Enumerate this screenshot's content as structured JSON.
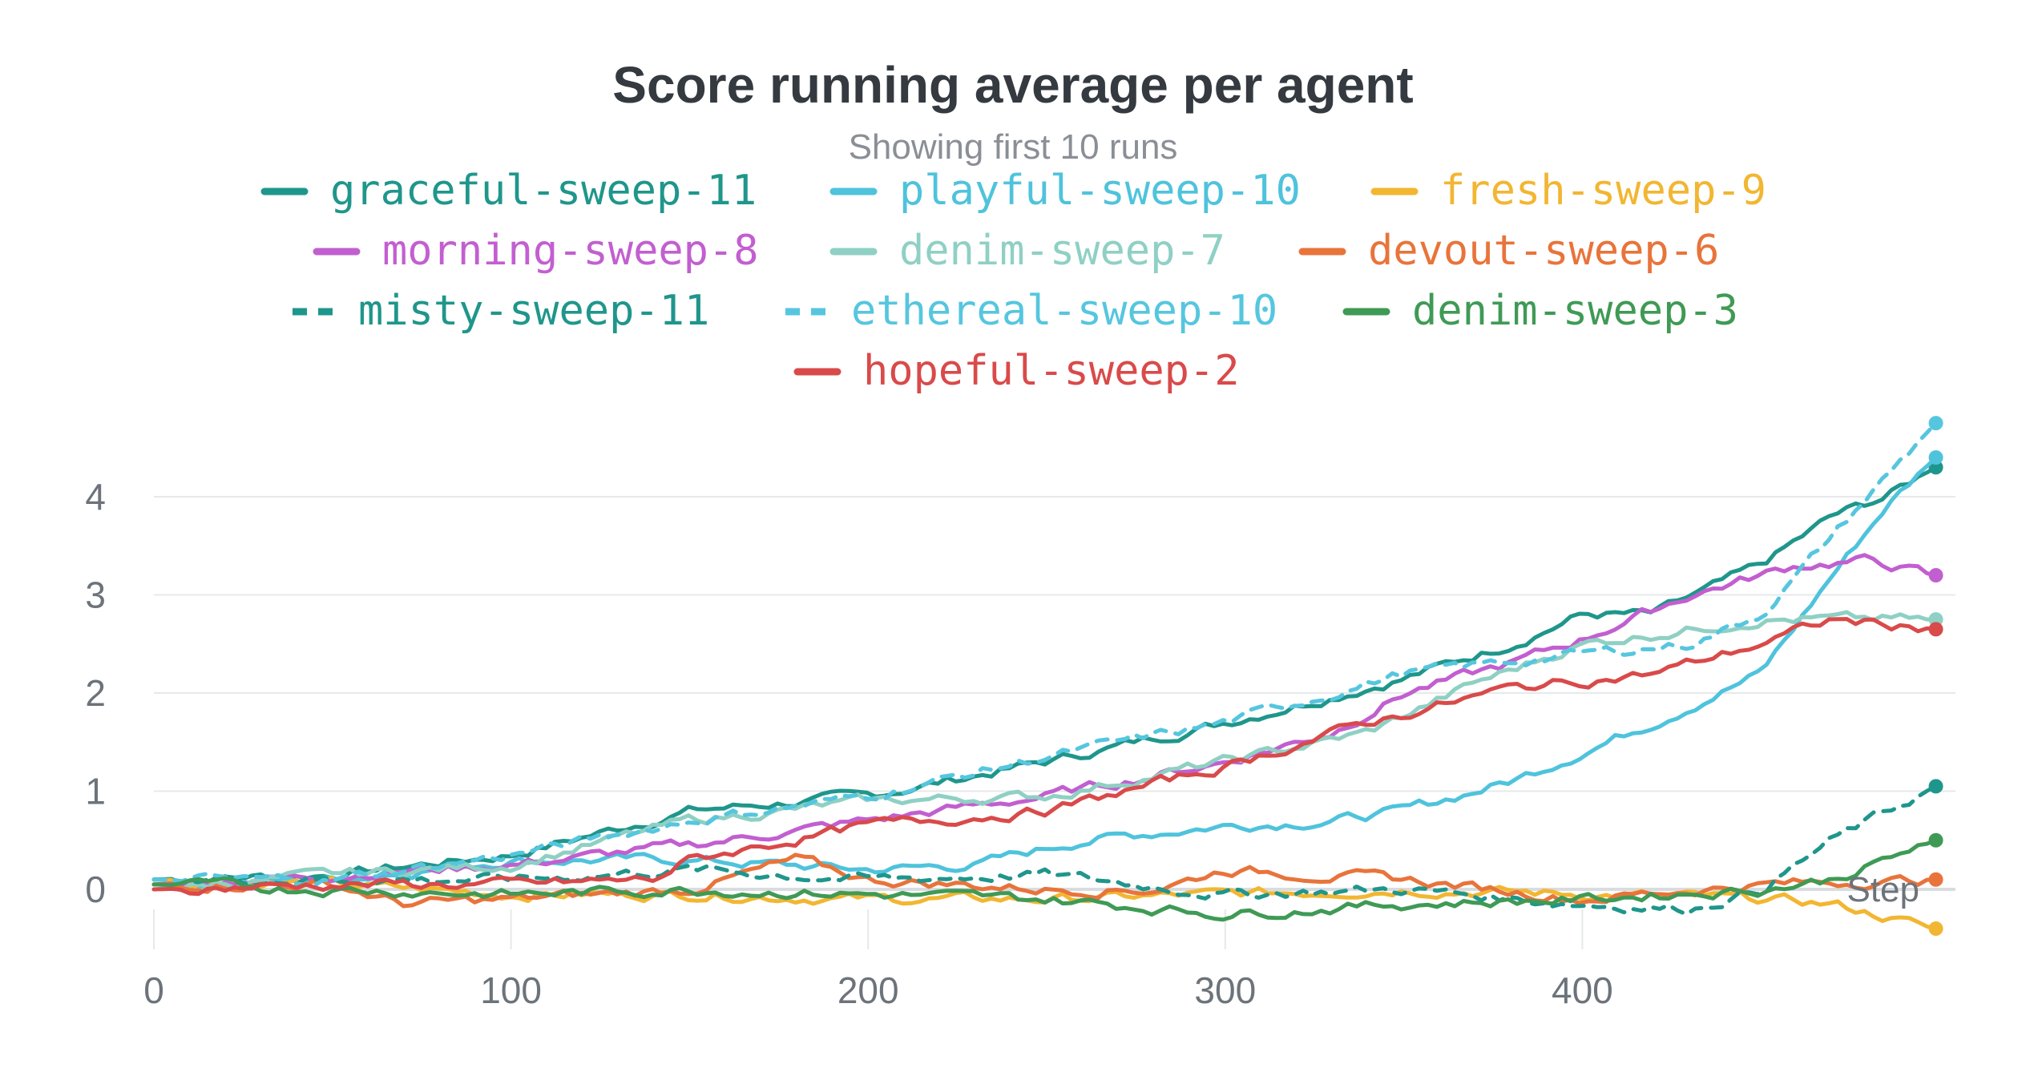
{
  "chart_data": {
    "type": "line",
    "title": "Score running average per agent",
    "subtitle": "Showing first 10 runs",
    "xlabel": "Step",
    "ylabel": "",
    "xlim": [
      0,
      500
    ],
    "ylim": [
      -0.5,
      4.6
    ],
    "x_ticks": [
      0,
      100,
      200,
      300,
      400
    ],
    "y_ticks": [
      0,
      1,
      2,
      3,
      4
    ],
    "grid": true,
    "legend_position": "top",
    "series": [
      {
        "name": "graceful-sweep-11",
        "color": "#1f968b",
        "dash": false,
        "points": [
          [
            0,
            0.1
          ],
          [
            50,
            0.15
          ],
          [
            100,
            0.35
          ],
          [
            150,
            0.8
          ],
          [
            200,
            0.95
          ],
          [
            250,
            1.3
          ],
          [
            300,
            1.7
          ],
          [
            350,
            2.15
          ],
          [
            380,
            2.5
          ],
          [
            400,
            2.8
          ],
          [
            420,
            2.8
          ],
          [
            450,
            3.3
          ],
          [
            470,
            3.8
          ],
          [
            485,
            4.0
          ],
          [
            499,
            4.3
          ]
        ]
      },
      {
        "name": "playful-sweep-10",
        "color": "#4fc3dc",
        "dash": false,
        "points": [
          [
            0,
            0.05
          ],
          [
            50,
            0.1
          ],
          [
            100,
            0.3
          ],
          [
            150,
            0.3
          ],
          [
            200,
            0.2
          ],
          [
            230,
            0.25
          ],
          [
            260,
            0.5
          ],
          [
            300,
            0.65
          ],
          [
            330,
            0.7
          ],
          [
            350,
            0.8
          ],
          [
            380,
            1.1
          ],
          [
            400,
            1.4
          ],
          [
            420,
            1.7
          ],
          [
            450,
            2.2
          ],
          [
            470,
            3.2
          ],
          [
            485,
            3.9
          ],
          [
            499,
            4.4
          ]
        ]
      },
      {
        "name": "fresh-sweep-9",
        "color": "#f2b632",
        "dash": false,
        "points": [
          [
            0,
            0.1
          ],
          [
            50,
            0.05
          ],
          [
            100,
            -0.05
          ],
          [
            150,
            -0.05
          ],
          [
            200,
            -0.1
          ],
          [
            250,
            -0.1
          ],
          [
            300,
            -0.05
          ],
          [
            350,
            0
          ],
          [
            400,
            -0.05
          ],
          [
            450,
            -0.1
          ],
          [
            470,
            -0.15
          ],
          [
            499,
            -0.4
          ]
        ]
      },
      {
        "name": "morning-sweep-8",
        "color": "#c25fd0",
        "dash": false,
        "points": [
          [
            0,
            0.05
          ],
          [
            50,
            0.15
          ],
          [
            100,
            0.25
          ],
          [
            150,
            0.45
          ],
          [
            200,
            0.7
          ],
          [
            250,
            0.95
          ],
          [
            300,
            1.3
          ],
          [
            330,
            1.6
          ],
          [
            350,
            2.0
          ],
          [
            380,
            2.3
          ],
          [
            400,
            2.55
          ],
          [
            430,
            3.0
          ],
          [
            460,
            3.3
          ],
          [
            480,
            3.35
          ],
          [
            499,
            3.2
          ]
        ]
      },
      {
        "name": "denim-sweep-7",
        "color": "#8fd0c4",
        "dash": false,
        "points": [
          [
            0,
            0
          ],
          [
            50,
            0.15
          ],
          [
            100,
            0.25
          ],
          [
            150,
            0.7
          ],
          [
            200,
            0.9
          ],
          [
            250,
            0.95
          ],
          [
            300,
            1.3
          ],
          [
            340,
            1.6
          ],
          [
            370,
            2.1
          ],
          [
            400,
            2.5
          ],
          [
            420,
            2.6
          ],
          [
            450,
            2.75
          ],
          [
            470,
            2.75
          ],
          [
            499,
            2.75
          ]
        ]
      },
      {
        "name": "devout-sweep-6",
        "color": "#e8743b",
        "dash": false,
        "points": [
          [
            0,
            0.05
          ],
          [
            50,
            0.05
          ],
          [
            70,
            -0.15
          ],
          [
            100,
            -0.1
          ],
          [
            150,
            0
          ],
          [
            180,
            0.3
          ],
          [
            200,
            0.1
          ],
          [
            250,
            0
          ],
          [
            280,
            0
          ],
          [
            300,
            0.2
          ],
          [
            350,
            0.1
          ],
          [
            400,
            -0.1
          ],
          [
            450,
            0.05
          ],
          [
            499,
            0.1
          ]
        ]
      },
      {
        "name": "misty-sweep-11",
        "color": "#1f968b",
        "dash": true,
        "points": [
          [
            0,
            0.1
          ],
          [
            50,
            0.1
          ],
          [
            100,
            0.1
          ],
          [
            150,
            0.2
          ],
          [
            200,
            0.1
          ],
          [
            250,
            0.15
          ],
          [
            300,
            -0.05
          ],
          [
            350,
            0
          ],
          [
            400,
            -0.15
          ],
          [
            430,
            -0.2
          ],
          [
            450,
            0
          ],
          [
            470,
            0.5
          ],
          [
            499,
            1.05
          ]
        ]
      },
      {
        "name": "ethereal-sweep-10",
        "color": "#56c6df",
        "dash": true,
        "points": [
          [
            0,
            0.1
          ],
          [
            50,
            0.1
          ],
          [
            100,
            0.35
          ],
          [
            150,
            0.7
          ],
          [
            200,
            0.95
          ],
          [
            250,
            1.35
          ],
          [
            300,
            1.7
          ],
          [
            350,
            2.2
          ],
          [
            400,
            2.4
          ],
          [
            430,
            2.5
          ],
          [
            450,
            2.8
          ],
          [
            470,
            3.6
          ],
          [
            485,
            4.2
          ],
          [
            499,
            4.75
          ]
        ]
      },
      {
        "name": "denim-sweep-3",
        "color": "#3f9a55",
        "dash": false,
        "points": [
          [
            0,
            0.05
          ],
          [
            50,
            0
          ],
          [
            100,
            -0.05
          ],
          [
            150,
            0
          ],
          [
            200,
            -0.05
          ],
          [
            250,
            -0.1
          ],
          [
            300,
            -0.25
          ],
          [
            350,
            -0.15
          ],
          [
            400,
            -0.1
          ],
          [
            450,
            0
          ],
          [
            470,
            0.1
          ],
          [
            485,
            0.3
          ],
          [
            499,
            0.5
          ]
        ]
      },
      {
        "name": "hopeful-sweep-2",
        "color": "#d94a4a",
        "dash": false,
        "points": [
          [
            0,
            0
          ],
          [
            50,
            0.05
          ],
          [
            100,
            0.05
          ],
          [
            140,
            0.1
          ],
          [
            150,
            0.3
          ],
          [
            200,
            0.65
          ],
          [
            250,
            0.8
          ],
          [
            300,
            1.25
          ],
          [
            340,
            1.7
          ],
          [
            380,
            2.05
          ],
          [
            420,
            2.2
          ],
          [
            450,
            2.5
          ],
          [
            470,
            2.75
          ],
          [
            499,
            2.65
          ]
        ]
      }
    ]
  }
}
